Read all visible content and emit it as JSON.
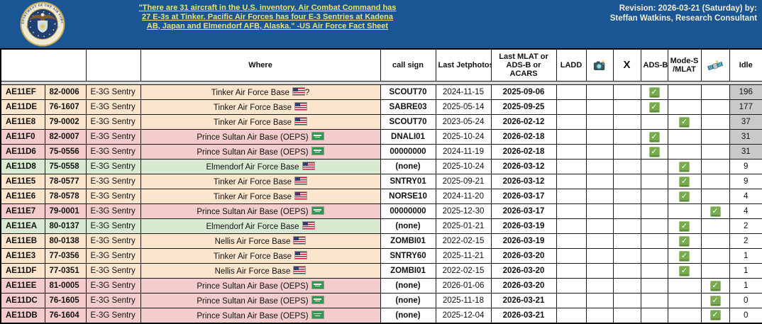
{
  "banner": {
    "seal": {
      "name": "us-air-force-seal",
      "text_top": "DEPARTMENT OF THE AIR FORCE",
      "text_bottom": "UNITED STATES OF AMERICA"
    },
    "quote": "\"There are 31 aircraft in the U.S. inventory. Air Combat Command has 27 E-3s at Tinker. Pacific Air Forces has four E-3 Sentries at Kadena AB, Japan and Elmendorf AFB, Alaska.\" -US Air Force Fact Sheet",
    "revision_line1": "Revision: 2026-03-21 (Saturday) by:",
    "revision_line2": "Steffan Watkins, Research Consultant"
  },
  "colors": {
    "banner_blue": "#1a5694",
    "link_yellow": "#e8e27a",
    "revision_cream": "#f2edd3",
    "row_orange": "#fce5cd",
    "row_red": "#f4cccc",
    "row_green": "#d9ead3",
    "idle_shaded_gray": "#c9c9c9",
    "check_green": "#77ab4e"
  },
  "table": {
    "headers": {
      "where": "Where",
      "call_sign": "call sign",
      "last_jetphotos": "Last Jetphotos",
      "last_mlat": "Last MLAT or ADS-B or ACARS",
      "ladd": "LADD",
      "camera": "camera-icon",
      "x": "X",
      "adsb": "ADS-B",
      "modes": "Mode-S /MLAT",
      "satellite": "satellite-icon",
      "idle": "Idle"
    },
    "rows": [
      {
        "hex": "AE11EF",
        "tail": "82-0006",
        "type": "E-3G Sentry",
        "where": "Tinker Air Force Base",
        "flag": "us",
        "where_suffix": "?",
        "call_sign": "SCOUT70",
        "last_jetphotos": "2024-11-15",
        "last_mlat": "2025-09-06",
        "check": "adsb",
        "idle": "196",
        "tint": "orange",
        "idle_shaded": true
      },
      {
        "hex": "AE11DE",
        "tail": "76-1607",
        "type": "E-3G Sentry",
        "where": "Tinker Air Force Base",
        "flag": "us",
        "where_suffix": "",
        "call_sign": "SABRE03",
        "last_jetphotos": "2025-05-14",
        "last_mlat": "2025-09-25",
        "check": "adsb",
        "idle": "177",
        "tint": "orange",
        "idle_shaded": true
      },
      {
        "hex": "AE11E8",
        "tail": "79-0002",
        "type": "E-3G Sentry",
        "where": "Tinker Air Force Base",
        "flag": "us",
        "where_suffix": "",
        "call_sign": "SCOUT70",
        "last_jetphotos": "2023-05-24",
        "last_mlat": "2026-02-12",
        "check": "modes",
        "idle": "37",
        "tint": "orange",
        "idle_shaded": true
      },
      {
        "hex": "AE11F0",
        "tail": "82-0007",
        "type": "E-3G Sentry",
        "where": "Prince Sultan Air Base (OEPS)",
        "flag": "sa",
        "where_suffix": "",
        "call_sign": "DNALI01",
        "last_jetphotos": "2025-10-24",
        "last_mlat": "2026-02-18",
        "check": "adsb",
        "idle": "31",
        "tint": "red",
        "idle_shaded": true
      },
      {
        "hex": "AE11D6",
        "tail": "75-0556",
        "type": "E-3G Sentry",
        "where": "Prince Sultan Air Base (OEPS)",
        "flag": "sa",
        "where_suffix": "",
        "call_sign": "00000000",
        "last_jetphotos": "2024-11-19",
        "last_mlat": "2026-02-18",
        "check": "adsb",
        "idle": "31",
        "tint": "red",
        "idle_shaded": true
      },
      {
        "hex": "AE11D8",
        "tail": "75-0558",
        "type": "E-3G Sentry",
        "where": "Elmendorf Air Force Base",
        "flag": "us",
        "where_suffix": "",
        "call_sign": "(none)",
        "last_jetphotos": "2025-10-24",
        "last_mlat": "2026-03-12",
        "check": "modes",
        "idle": "9",
        "tint": "green",
        "idle_shaded": false
      },
      {
        "hex": "AE11E5",
        "tail": "78-0577",
        "type": "E-3G Sentry",
        "where": "Tinker Air Force Base",
        "flag": "us",
        "where_suffix": "",
        "call_sign": "SNTRY01",
        "last_jetphotos": "2025-09-21",
        "last_mlat": "2026-03-12",
        "check": "modes",
        "idle": "9",
        "tint": "orange",
        "idle_shaded": false
      },
      {
        "hex": "AE11E6",
        "tail": "78-0578",
        "type": "E-3G Sentry",
        "where": "Tinker Air Force Base",
        "flag": "us",
        "where_suffix": "",
        "call_sign": "NORSE10",
        "last_jetphotos": "2024-11-20",
        "last_mlat": "2026-03-17",
        "check": "modes",
        "idle": "4",
        "tint": "orange",
        "idle_shaded": false
      },
      {
        "hex": "AE11E7",
        "tail": "79-0001",
        "type": "E-3G Sentry",
        "where": "Prince Sultan Air Base (OEPS)",
        "flag": "sa",
        "where_suffix": "",
        "call_sign": "00000000",
        "last_jetphotos": "2025-12-30",
        "last_mlat": "2026-03-17",
        "check": "sat",
        "idle": "4",
        "tint": "red",
        "idle_shaded": false
      },
      {
        "hex": "AE11EA",
        "tail": "80-0137",
        "type": "E-3G Sentry",
        "where": "Elmendorf Air Force Base",
        "flag": "us",
        "where_suffix": "",
        "call_sign": "(none)",
        "last_jetphotos": "2025-01-21",
        "last_mlat": "2026-03-19",
        "check": "modes",
        "idle": "2",
        "tint": "green",
        "idle_shaded": false
      },
      {
        "hex": "AE11EB",
        "tail": "80-0138",
        "type": "E-3G Sentry",
        "where": "Nellis Air Force Base",
        "flag": "us",
        "where_suffix": "",
        "call_sign": "ZOMBI01",
        "last_jetphotos": "2022-02-15",
        "last_mlat": "2026-03-19",
        "check": "modes",
        "idle": "2",
        "tint": "orange",
        "idle_shaded": false
      },
      {
        "hex": "AE11E3",
        "tail": "77-0356",
        "type": "E-3G Sentry",
        "where": "Tinker Air Force Base",
        "flag": "us",
        "where_suffix": "",
        "call_sign": "SNTRY60",
        "last_jetphotos": "2025-11-21",
        "last_mlat": "2026-03-20",
        "check": "modes",
        "idle": "1",
        "tint": "orange",
        "idle_shaded": false
      },
      {
        "hex": "AE11DF",
        "tail": "77-0351",
        "type": "E-3G Sentry",
        "where": "Nellis Air Force Base",
        "flag": "us",
        "where_suffix": "",
        "call_sign": "ZOMBI01",
        "last_jetphotos": "2022-02-15",
        "last_mlat": "2026-03-20",
        "check": "modes",
        "idle": "1",
        "tint": "orange",
        "idle_shaded": false
      },
      {
        "hex": "AE11EE",
        "tail": "81-0005",
        "type": "E-3G Sentry",
        "where": "Prince Sultan Air Base (OEPS)",
        "flag": "sa",
        "where_suffix": "",
        "call_sign": "(none)",
        "last_jetphotos": "2026-01-06",
        "last_mlat": "2026-03-20",
        "check": "sat",
        "idle": "1",
        "tint": "red",
        "idle_shaded": false
      },
      {
        "hex": "AE11DC",
        "tail": "76-1605",
        "type": "E-3G Sentry",
        "where": "Prince Sultan Air Base (OEPS)",
        "flag": "sa",
        "where_suffix": "",
        "call_sign": "(none)",
        "last_jetphotos": "2025-11-18",
        "last_mlat": "2026-03-21",
        "check": "sat",
        "idle": "0",
        "tint": "red",
        "idle_shaded": false
      },
      {
        "hex": "AE11DB",
        "tail": "76-1604",
        "type": "E-3G Sentry",
        "where": "Prince Sultan Air Base (OEPS)",
        "flag": "sa",
        "where_suffix": "",
        "call_sign": "(none)",
        "last_jetphotos": "2025-12-04",
        "last_mlat": "2026-03-21",
        "check": "sat",
        "idle": "0",
        "tint": "red",
        "idle_shaded": false
      }
    ]
  }
}
